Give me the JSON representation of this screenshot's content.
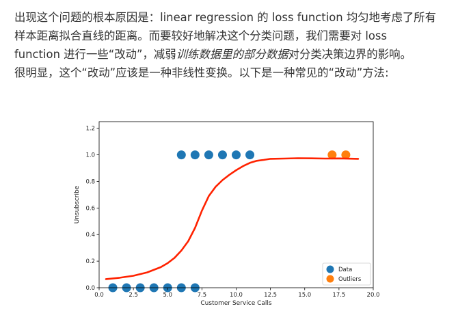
{
  "paragraph": {
    "line1": "出现这个问题的根本原因是：linear regression 的 loss function 均匀地考虑了所有",
    "line2": "样本距离拟合直线的距离。而要较好地解决这个分类问题，我们需要对 loss",
    "line3_pre": "function 进行一些“改动”，减弱",
    "line3_em": "训练数据里的部分数据",
    "line3_post": "对分类决策边界的影响。",
    "line4": "很明显，这个“改动”应该是一种非线性变换。以下是一种常见的“改动”方法:"
  },
  "chart_data": {
    "type": "scatter",
    "xlabel": "Customer Service Calls",
    "ylabel": "Unsubscribe",
    "xlim": [
      0,
      20
    ],
    "ylim": [
      0,
      1.25
    ],
    "x_ticks": [
      "0.0",
      "2.5",
      "5.0",
      "7.5",
      "10.0",
      "12.5",
      "15.0",
      "17.5",
      "20.0"
    ],
    "y_ticks": [
      "0.0",
      "0.2",
      "0.4",
      "0.6",
      "0.8",
      "1.0",
      "1.2"
    ],
    "legend_position": "bottom-right",
    "grid": false,
    "series": [
      {
        "name": "Data",
        "color": "#1f77b4",
        "points": [
          [
            1,
            0
          ],
          [
            2,
            0
          ],
          [
            3,
            0
          ],
          [
            4,
            0
          ],
          [
            5,
            0
          ],
          [
            6,
            0
          ],
          [
            7,
            0
          ],
          [
            6,
            1
          ],
          [
            7,
            1
          ],
          [
            8,
            1
          ],
          [
            9,
            1
          ],
          [
            10,
            1
          ],
          [
            11,
            1
          ]
        ]
      },
      {
        "name": "Outliers",
        "color": "#ff7f0e",
        "points": [
          [
            17,
            1
          ],
          [
            18,
            1
          ]
        ]
      }
    ],
    "curve": {
      "color": "#ff2200",
      "points": [
        [
          0.5,
          0.065
        ],
        [
          1.5,
          0.075
        ],
        [
          2.5,
          0.09
        ],
        [
          3.5,
          0.115
        ],
        [
          4.5,
          0.155
        ],
        [
          5.0,
          0.185
        ],
        [
          5.5,
          0.225
        ],
        [
          6.0,
          0.28
        ],
        [
          6.5,
          0.35
        ],
        [
          7.0,
          0.45
        ],
        [
          7.5,
          0.58
        ],
        [
          8.0,
          0.69
        ],
        [
          8.5,
          0.76
        ],
        [
          9.0,
          0.81
        ],
        [
          9.5,
          0.85
        ],
        [
          10.0,
          0.885
        ],
        [
          10.5,
          0.915
        ],
        [
          11.0,
          0.94
        ],
        [
          11.5,
          0.955
        ],
        [
          12.0,
          0.962
        ],
        [
          12.5,
          0.97
        ],
        [
          13.5,
          0.972
        ],
        [
          14.5,
          0.975
        ],
        [
          15.5,
          0.974
        ],
        [
          16.5,
          0.972
        ],
        [
          17.5,
          0.973
        ],
        [
          18.9,
          0.97
        ]
      ]
    }
  }
}
